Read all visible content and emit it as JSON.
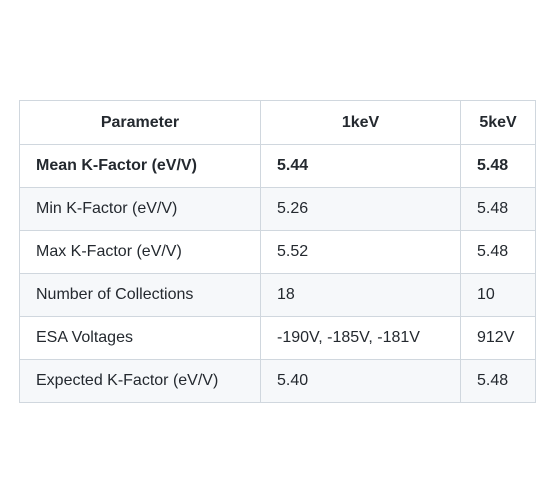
{
  "table": {
    "headers": [
      "Parameter",
      "1keV",
      "5keV"
    ],
    "rows": [
      {
        "parameter": "Mean K-Factor (eV/V)",
        "v1kev": "5.44",
        "v5kev": "5.48"
      },
      {
        "parameter": "Min K-Factor (eV/V)",
        "v1kev": "5.26",
        "v5kev": "5.48"
      },
      {
        "parameter": "Max K-Factor (eV/V)",
        "v1kev": "5.52",
        "v5kev": "5.48"
      },
      {
        "parameter": "Number of Collections",
        "v1kev": "18",
        "v5kev": "10"
      },
      {
        "parameter": "ESA Voltages",
        "v1kev": "-190V, -185V, -181V",
        "v5kev": "912V"
      },
      {
        "parameter": "Expected K-Factor (eV/V)",
        "v1kev": "5.40",
        "v5kev": "5.48"
      }
    ]
  }
}
